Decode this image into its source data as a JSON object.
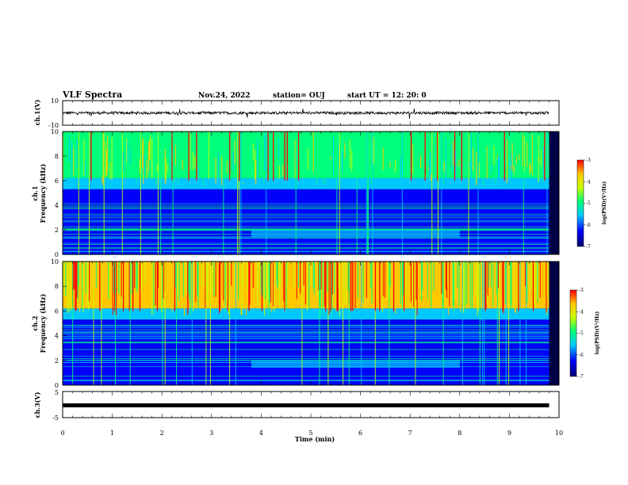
{
  "header": {
    "title": "VLF Spectra",
    "date": "Nov.24, 2022",
    "station": "station= OUJ",
    "start": "start  UT  =   12: 20: 0"
  },
  "chart_data": [
    {
      "type": "line",
      "panel": "ch1-waveform",
      "ylabel": "ch.1(V)",
      "ylim": [
        -10,
        10
      ],
      "ytick_labels": [
        "10",
        "-10"
      ],
      "baseline": 0
    },
    {
      "type": "heatmap",
      "panel": "ch1-spectrogram",
      "ylabel": "ch.1",
      "ylabel2": "Frequency (kHz)",
      "ylim": [
        0,
        10
      ],
      "ytick_labels": [
        "0",
        "2",
        "4",
        "6",
        "8",
        "10"
      ],
      "colorbar": {
        "label": "log(PSD)(V²/Hz)",
        "range": [
          -7,
          -3
        ],
        "tick_labels": [
          "-3",
          "-4",
          "-5",
          "-6",
          "-7"
        ]
      },
      "colormap": [
        "#00006e",
        "#0000ff",
        "#00c8ff",
        "#00ff7a",
        "#c8ff00",
        "#ffc800",
        "#ff0000"
      ]
    },
    {
      "type": "heatmap",
      "panel": "ch2-spectrogram",
      "ylabel": "ch.2",
      "ylabel2": "Frequency (kHz)",
      "ylim": [
        0,
        10
      ],
      "ytick_labels": [
        "0",
        "2",
        "4",
        "6",
        "8",
        "10"
      ],
      "colorbar": {
        "label": "log(PSD)(V²/Hz)",
        "range": [
          -7,
          -3
        ],
        "tick_labels": [
          "-3",
          "-4",
          "-5",
          "-6",
          "-7"
        ]
      },
      "colormap": [
        "#00006e",
        "#0000ff",
        "#00c8ff",
        "#00ff7a",
        "#c8ff00",
        "#ffc800",
        "#ff0000"
      ]
    },
    {
      "type": "line",
      "panel": "ch3-waveform",
      "ylabel": "ch.3(V)",
      "ylim": [
        -5,
        5
      ],
      "ytick_labels": [
        "5",
        "-5"
      ],
      "baseline": -1.5
    }
  ],
  "xaxis": {
    "label": "Time (min)",
    "range": [
      0,
      10
    ],
    "tick_labels": [
      "0",
      "1",
      "2",
      "3",
      "4",
      "5",
      "6",
      "7",
      "8",
      "9",
      "10"
    ],
    "data_end": 9.8
  }
}
